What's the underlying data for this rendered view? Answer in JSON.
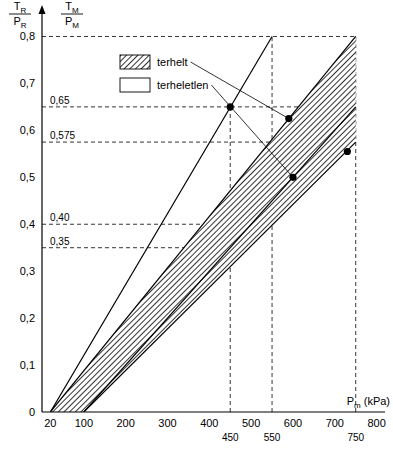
{
  "chart_data": {
    "type": "line",
    "x_label": {
      "text": "P",
      "sub": "m",
      "unit": "(kPa)"
    },
    "y_labels": [
      {
        "numerator": "T",
        "numerator_sub": "R",
        "denominator": "P",
        "denominator_sub": "R"
      },
      {
        "numerator": "T",
        "numerator_sub": "M",
        "denominator": "P",
        "denominator_sub": "M"
      }
    ],
    "xlim": [
      0,
      820
    ],
    "ylim": [
      0,
      0.85
    ],
    "xticks": [
      20,
      100,
      200,
      300,
      400,
      500,
      600,
      700,
      800
    ],
    "yticks": [
      0,
      {
        "value": 0.1,
        "label": "0,1"
      },
      {
        "value": 0.2,
        "label": "0,2"
      },
      {
        "value": 0.3,
        "label": "0,3"
      },
      {
        "value": 0.4,
        "label": "0,4"
      },
      {
        "value": 0.5,
        "label": "0,5"
      },
      {
        "value": 0.6,
        "label": "0,6"
      },
      {
        "value": 0.7,
        "label": "0,7"
      },
      {
        "value": 0.8,
        "label": "0,8"
      }
    ],
    "grid": false,
    "legend": "top-left",
    "series": [
      {
        "name": "terhelt",
        "type": "area",
        "color": "#000000",
        "x": [
          20,
          750,
          750,
          100
        ],
        "values": [
          0,
          0.8,
          0.575,
          0
        ]
      },
      {
        "name": "terheletlen",
        "type": "line",
        "color": "#000000",
        "x": [
          20,
          550
        ],
        "values": [
          0,
          0.8
        ]
      },
      {
        "type": "line",
        "color": "#000000",
        "x": [
          20,
          750
        ],
        "values": [
          0,
          0.8
        ]
      },
      {
        "type": "line",
        "color": "#000000",
        "x": [
          100,
          750
        ],
        "values": [
          0,
          0.65
        ]
      },
      {
        "type": "line",
        "color": "#000000",
        "x": [
          100,
          750
        ],
        "values": [
          0,
          0.575
        ]
      },
      {
        "type": "scatter",
        "marker": "circle",
        "color": "#000000",
        "x": [
          450,
          590,
          600,
          730
        ],
        "values": [
          0.65,
          0.625,
          0.5,
          0.555
        ]
      }
    ],
    "guides": [
      {
        "axis": "y",
        "value": 0.8,
        "to": 750
      },
      {
        "axis": "y",
        "value": 0.65,
        "to": 750,
        "label": "0,65"
      },
      {
        "axis": "y",
        "value": 0.575,
        "to": 750,
        "label": "0,575"
      },
      {
        "axis": "y",
        "value": 0.4,
        "to": 550,
        "label": "0,40"
      },
      {
        "axis": "y",
        "value": 0.35,
        "to": 450,
        "label": "0,35"
      },
      {
        "axis": "x",
        "value": 450,
        "to": 0.65
      },
      {
        "axis": "x",
        "value": 550,
        "to": 0.8
      },
      {
        "axis": "x",
        "value": 750,
        "to": 0.8
      }
    ]
  }
}
